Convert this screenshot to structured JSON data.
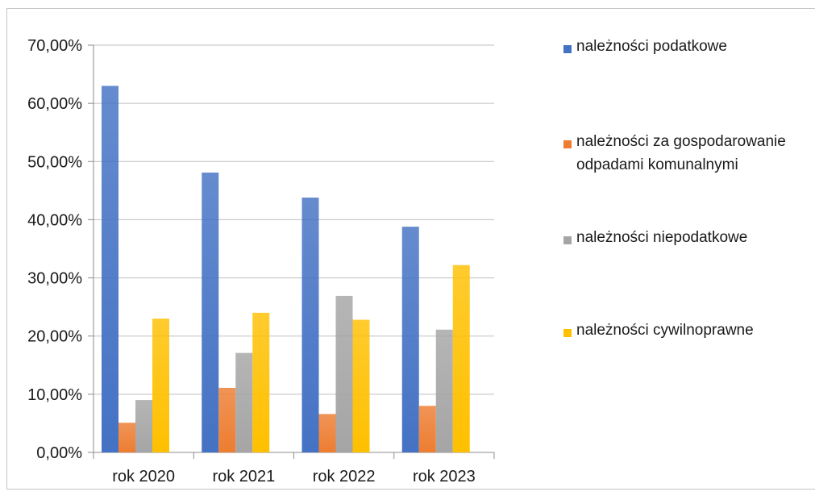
{
  "chart_data": {
    "type": "bar",
    "categories": [
      "rok 2020",
      "rok 2021",
      "rok 2022",
      "rok 2023"
    ],
    "series": [
      {
        "name": "należności podatkowe",
        "values": [
          63.0,
          48.1,
          43.8,
          38.8
        ],
        "color": "#4472c4"
      },
      {
        "name": "należności za gospodarowanie odpadami komunalnymi",
        "values": [
          5.1,
          11.1,
          6.6,
          8.0
        ],
        "color": "#ed7d31"
      },
      {
        "name": "należności niepodatkowe",
        "values": [
          9.0,
          17.1,
          26.9,
          21.1
        ],
        "color": "#a5a5a5"
      },
      {
        "name": "należności cywilnoprawne",
        "values": [
          23.0,
          24.0,
          22.8,
          32.2
        ],
        "color": "#ffc000"
      }
    ],
    "yticks": [
      "0,00%",
      "10,00%",
      "20,00%",
      "30,00%",
      "40,00%",
      "50,00%",
      "60,00%",
      "70,00%"
    ],
    "ylim": [
      0,
      70
    ],
    "ytick_step": 10,
    "grid": true,
    "legend_position": "right",
    "title": "",
    "xlabel": "",
    "ylabel": ""
  },
  "legend": {
    "items": [
      {
        "line1": "należności podatkowe",
        "line2": ""
      },
      {
        "line1": "należności za gospodarowanie",
        "line2": "odpadami komunalnymi"
      },
      {
        "line1": "należności niepodatkowe",
        "line2": ""
      },
      {
        "line1": "należności cywilnoprawne",
        "line2": ""
      }
    ]
  }
}
